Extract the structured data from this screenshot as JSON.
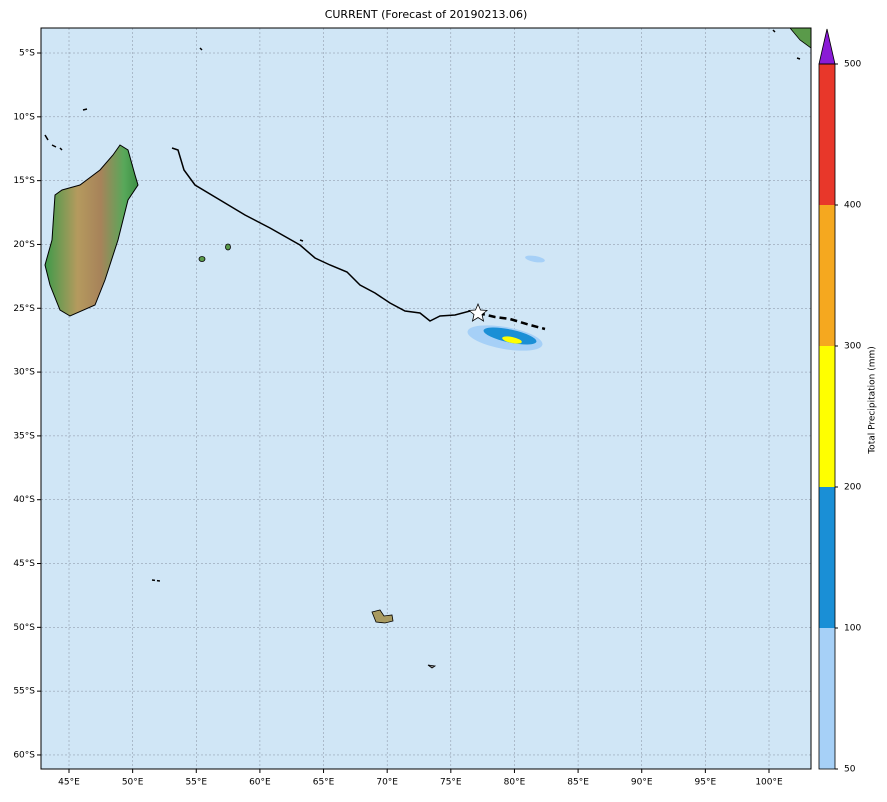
{
  "map": {
    "title": "CURRENT (Forecast of 20190213.06)",
    "lonlim": [
      42.8,
      103.3
    ],
    "latlim": [
      -61.1,
      -3.04
    ],
    "lon_ticks": [
      {
        "value": 45,
        "label": "45°E"
      },
      {
        "value": 50,
        "label": "50°E"
      },
      {
        "value": 55,
        "label": "55°E"
      },
      {
        "value": 60,
        "label": "60°E"
      },
      {
        "value": 65,
        "label": "65°E"
      },
      {
        "value": 70,
        "label": "70°E"
      },
      {
        "value": 75,
        "label": "75°E"
      },
      {
        "value": 80,
        "label": "80°E"
      },
      {
        "value": 85,
        "label": "85°E"
      },
      {
        "value": 90,
        "label": "90°E"
      },
      {
        "value": 95,
        "label": "95°E"
      },
      {
        "value": 100,
        "label": "100°E"
      }
    ],
    "lat_ticks": [
      {
        "value": -5,
        "label": "5°S"
      },
      {
        "value": -10,
        "label": "10°S"
      },
      {
        "value": -15,
        "label": "15°S"
      },
      {
        "value": -20,
        "label": "20°S"
      },
      {
        "value": -25,
        "label": "25°S"
      },
      {
        "value": -30,
        "label": "30°S"
      },
      {
        "value": -35,
        "label": "35°S"
      },
      {
        "value": -40,
        "label": "40°S"
      },
      {
        "value": -45,
        "label": "45°S"
      },
      {
        "value": -50,
        "label": "50°S"
      },
      {
        "value": -55,
        "label": "55°S"
      },
      {
        "value": -60,
        "label": "60°S"
      }
    ],
    "grid": true,
    "colorbar": {
      "label": "Total Precipitation (mm)",
      "levels": [
        50,
        100,
        200,
        300,
        400,
        500
      ],
      "colors": [
        "#a6d0f7",
        "#1a8fd6",
        "#ffff00",
        "#f5a81f",
        "#e8372a"
      ],
      "extend_color": "#8a1bd6"
    }
  }
}
